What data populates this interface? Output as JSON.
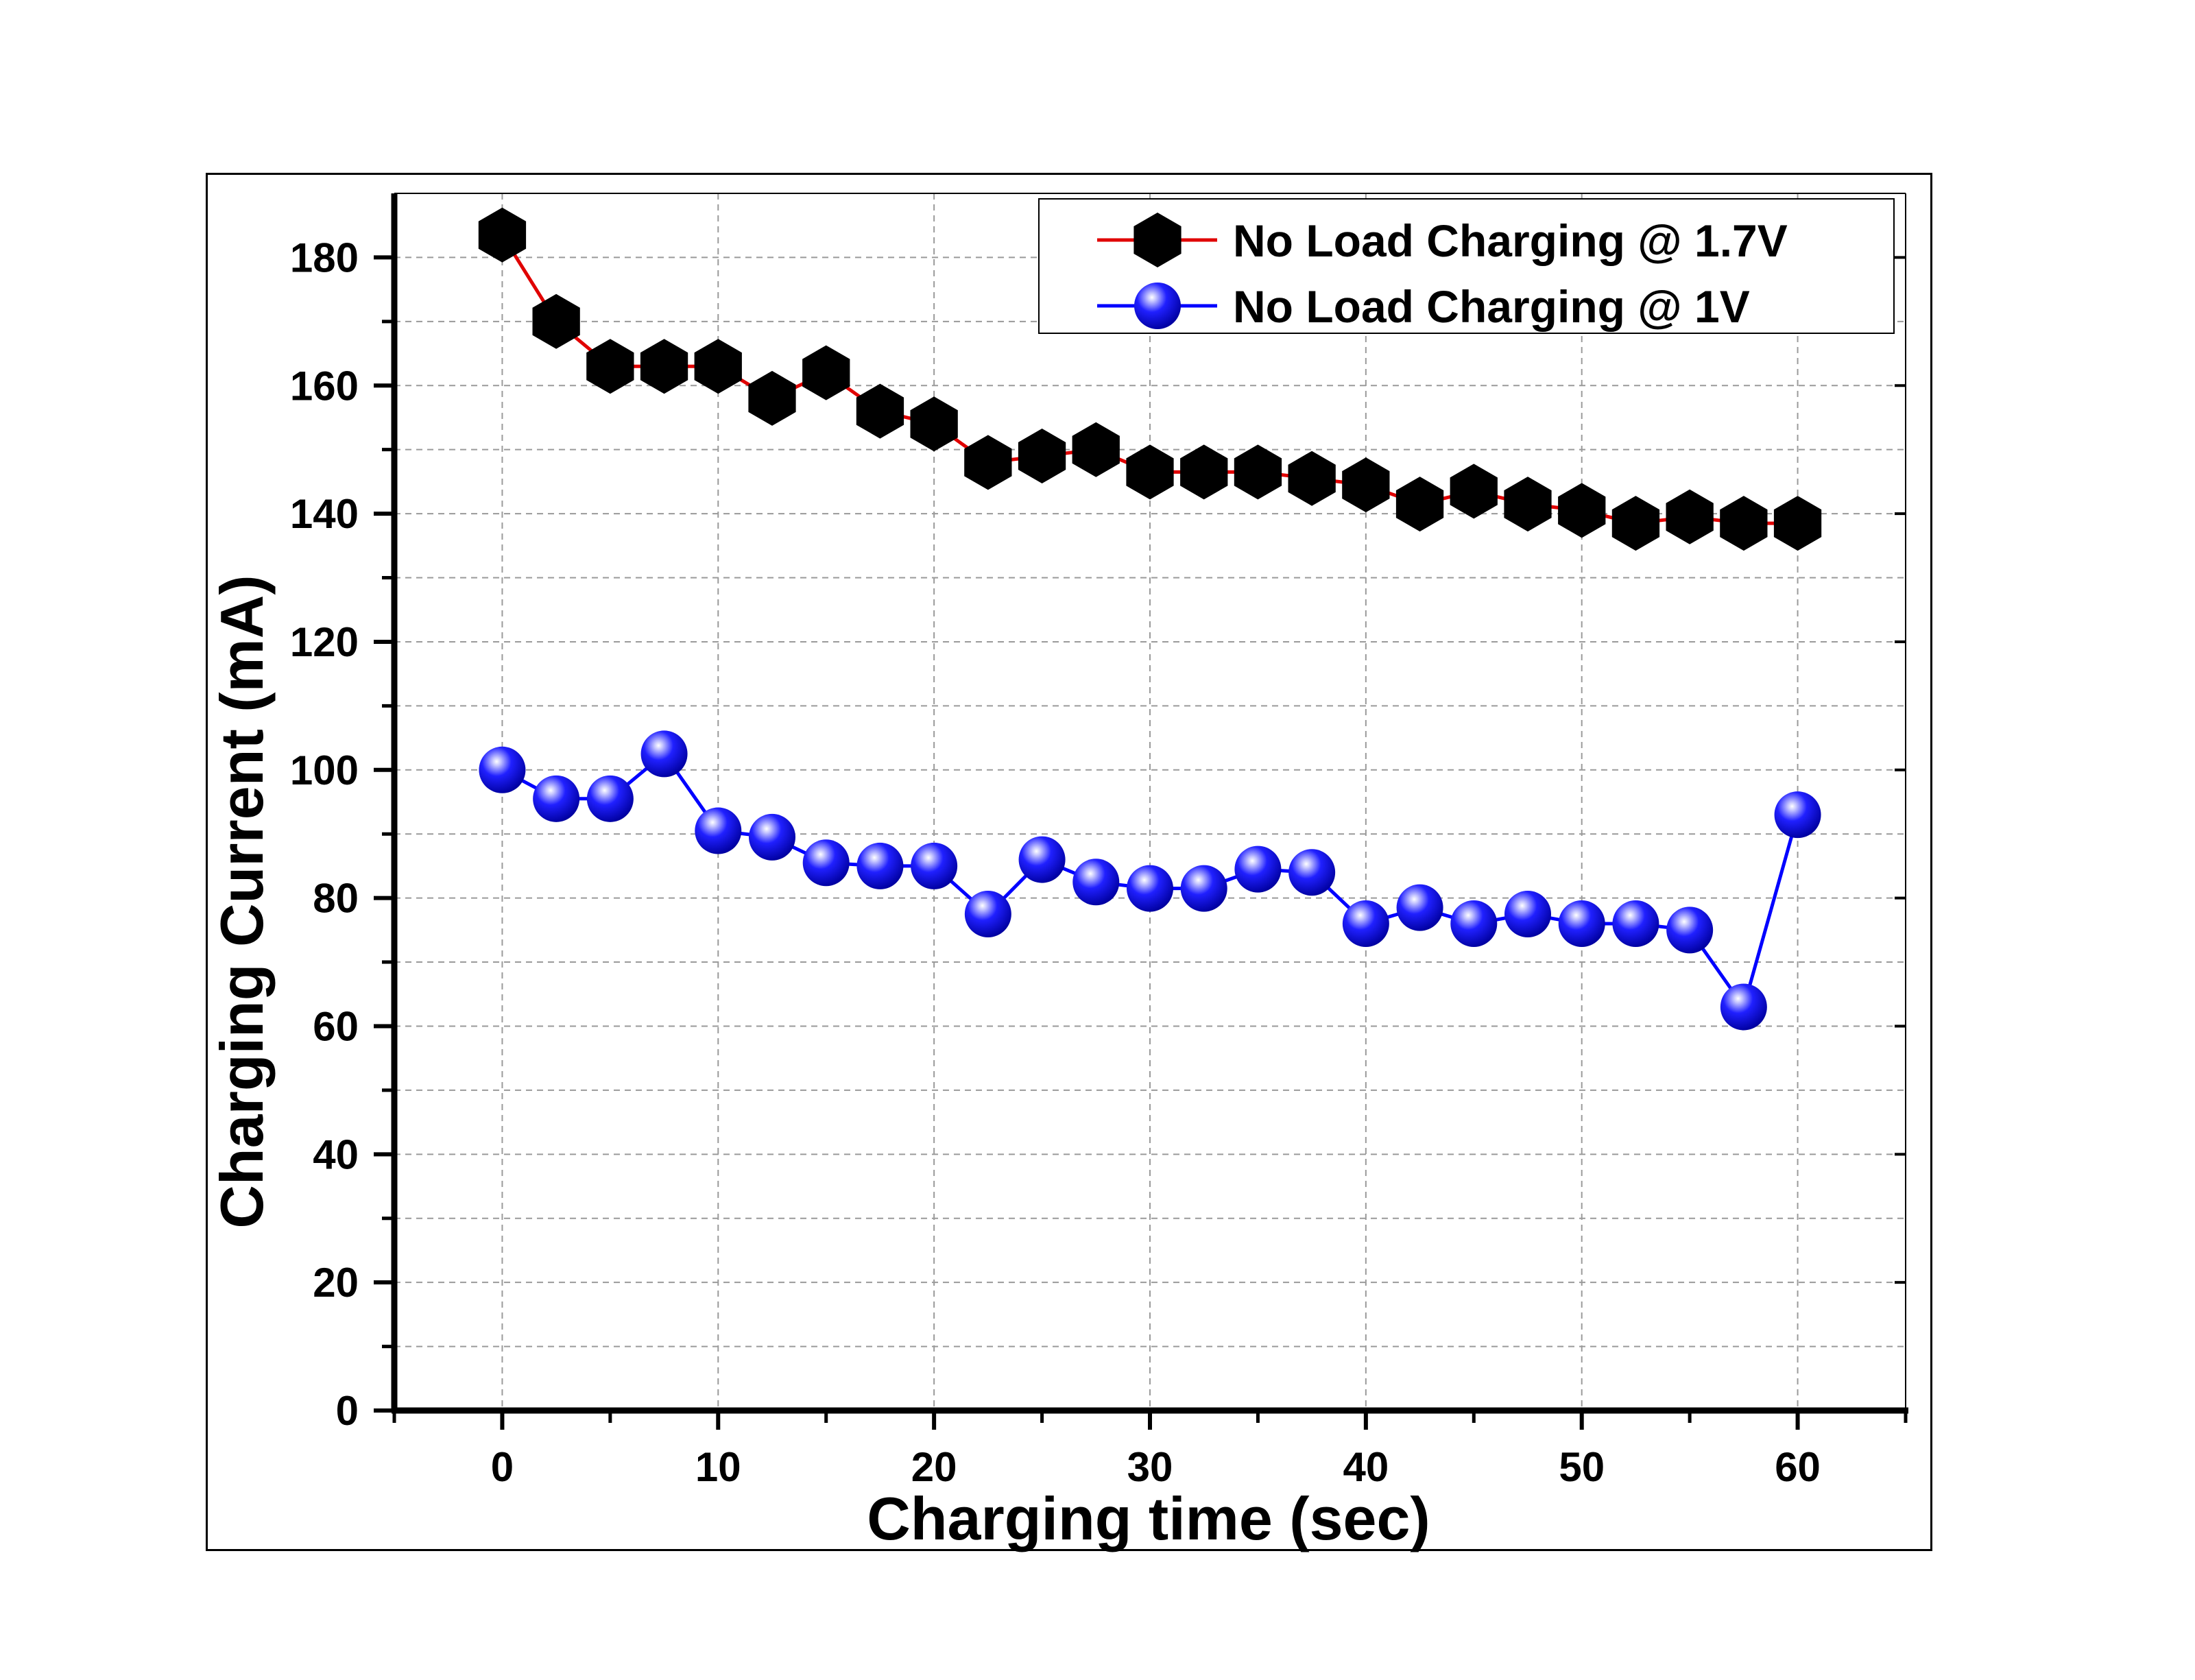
{
  "chart_data": {
    "type": "line",
    "xlabel": "Charging time (sec)",
    "ylabel": "Charging Current (mA)",
    "xlim": [
      -5,
      65
    ],
    "ylim": [
      0,
      190
    ],
    "x_ticks": [
      0,
      10,
      20,
      30,
      40,
      50,
      60
    ],
    "y_ticks": [
      0,
      20,
      40,
      60,
      80,
      100,
      120,
      140,
      160,
      180
    ],
    "grid": true,
    "legend_position": "top-right",
    "x": [
      0,
      2.5,
      5,
      7.5,
      10,
      12.5,
      15,
      17.5,
      20,
      22.5,
      25,
      27.5,
      30,
      32.5,
      35,
      37.5,
      40,
      42.5,
      45,
      47.5,
      50,
      52.5,
      55,
      57.5,
      60
    ],
    "series": [
      {
        "name": "No Load Charging @ 1.7V",
        "color": "#e00000",
        "marker": "hexagon",
        "marker_color": "#000000",
        "values": [
          183.5,
          170,
          163,
          163,
          163,
          158,
          162,
          156,
          154,
          148,
          149,
          150,
          146.5,
          146.5,
          146.5,
          145.5,
          144.5,
          141.5,
          143.5,
          141.5,
          140.5,
          138.5,
          139.5,
          138.5,
          138.5
        ]
      },
      {
        "name": "No Load Charging @ 1V",
        "color": "#0000ff",
        "marker": "sphere",
        "marker_color": "#0000ff",
        "values": [
          100,
          95.5,
          95.5,
          102.5,
          90.5,
          89.5,
          85.5,
          85,
          85,
          77.5,
          86,
          82.5,
          81.5,
          81.5,
          84.5,
          84,
          76,
          78.5,
          76,
          77.5,
          76,
          76,
          75,
          63,
          93
        ]
      }
    ]
  }
}
